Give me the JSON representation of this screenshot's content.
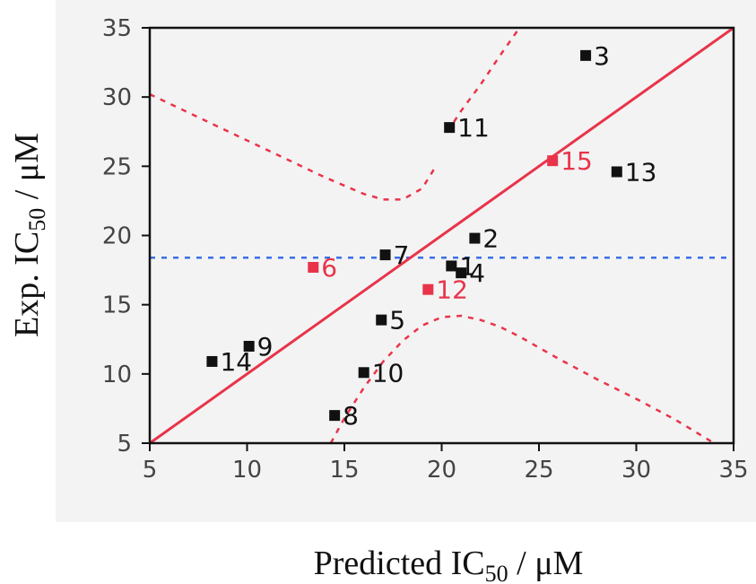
{
  "chart_data": {
    "type": "scatter",
    "xlabel": {
      "main": "Predicted IC",
      "sub": "50",
      "unit": " / μM"
    },
    "ylabel": {
      "main": "Exp. IC",
      "sub": "50",
      "unit": " / μM"
    },
    "xlim": [
      5,
      35
    ],
    "ylim": [
      5,
      35
    ],
    "xticks": [
      5,
      10,
      15,
      20,
      25,
      30,
      35
    ],
    "yticks": [
      5,
      10,
      15,
      20,
      25,
      30,
      35
    ],
    "grid": false,
    "colors": {
      "training": "#111111",
      "test": "#e8344a",
      "fit_line": "#e8344a",
      "confidence": "#e8344a",
      "mean_line": "#3a6fe8",
      "plot_bg": "#f3f3f3"
    },
    "points": [
      {
        "label": "1",
        "x": 20.5,
        "y": 17.8,
        "set": "training"
      },
      {
        "label": "2",
        "x": 21.7,
        "y": 19.8,
        "set": "training"
      },
      {
        "label": "3",
        "x": 27.4,
        "y": 33.0,
        "set": "training"
      },
      {
        "label": "4",
        "x": 21.0,
        "y": 17.3,
        "set": "training"
      },
      {
        "label": "5",
        "x": 16.9,
        "y": 13.9,
        "set": "training"
      },
      {
        "label": "6",
        "x": 13.4,
        "y": 17.7,
        "set": "test"
      },
      {
        "label": "7",
        "x": 17.1,
        "y": 18.6,
        "set": "training"
      },
      {
        "label": "8",
        "x": 14.5,
        "y": 7.0,
        "set": "training"
      },
      {
        "label": "9",
        "x": 10.1,
        "y": 12.0,
        "set": "training"
      },
      {
        "label": "10",
        "x": 16.0,
        "y": 10.1,
        "set": "training"
      },
      {
        "label": "11",
        "x": 20.4,
        "y": 27.8,
        "set": "training"
      },
      {
        "label": "12",
        "x": 19.3,
        "y": 16.1,
        "set": "test"
      },
      {
        "label": "13",
        "x": 29.0,
        "y": 24.6,
        "set": "training"
      },
      {
        "label": "14",
        "x": 8.2,
        "y": 10.9,
        "set": "training"
      },
      {
        "label": "15",
        "x": 25.7,
        "y": 25.4,
        "set": "test"
      }
    ],
    "fit_line": {
      "x": [
        5,
        35
      ],
      "y": [
        5,
        35
      ]
    },
    "mean_line_y": 18.4,
    "confidence_band": {
      "upper_left": {
        "x": [
          5,
          8,
          11,
          14,
          16,
          17,
          18,
          19,
          19.7
        ],
        "y": [
          30.2,
          28.2,
          26.2,
          24.2,
          23.0,
          22.6,
          22.6,
          23.4,
          25.0
        ]
      },
      "upper_right": {
        "x": [
          20.3,
          21.0,
          22.0,
          23.0,
          24.0
        ],
        "y": [
          27.5,
          29.0,
          30.9,
          33.0,
          35.0
        ]
      },
      "lower": {
        "x": [
          14.3,
          15,
          16,
          17,
          18,
          19,
          20,
          21,
          22,
          23,
          24,
          25,
          26,
          28,
          30,
          32,
          34
        ],
        "y": [
          5.0,
          6.8,
          9.0,
          10.9,
          12.4,
          13.5,
          14.1,
          14.2,
          13.9,
          13.4,
          12.7,
          11.9,
          11.1,
          9.6,
          8.2,
          6.7,
          5.0
        ]
      }
    }
  }
}
